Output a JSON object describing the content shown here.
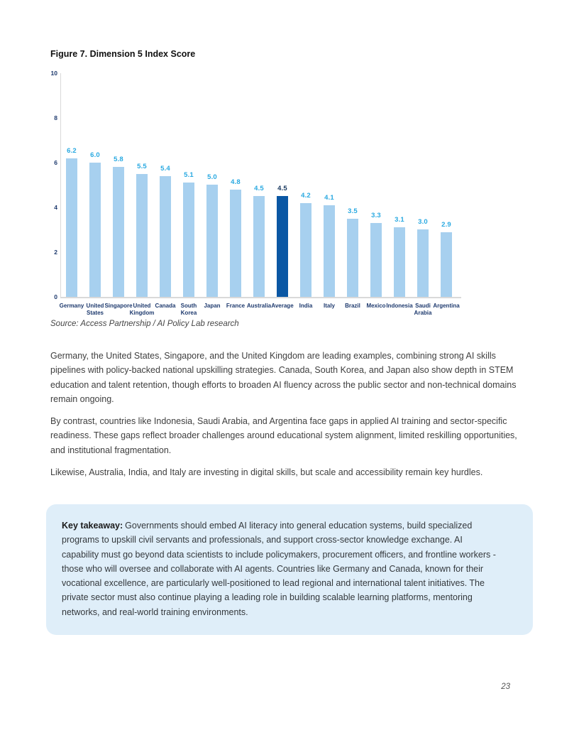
{
  "page": {
    "figure_title": "Figure 7. Dimension 5 Index Score",
    "source": "Source: Access Partnership / AI Policy Lab research",
    "paragraphs": [
      "Germany, the United States, Singapore, and the United Kingdom are leading examples, combining strong AI skills pipelines with policy-backed national upskilling strategies. Canada, South Korea, and Japan also show depth in STEM education and talent retention, though efforts to broaden AI fluency across the public sector and non-technical domains remain ongoing.",
      "By contrast, countries like Indonesia, Saudi Arabia, and Argentina face gaps in applied AI training and sector-specific readiness. These gaps reflect broader challenges around educational system alignment, limited reskilling opportunities, and institutional fragmentation.",
      "Likewise, Australia, India, and Italy are investing in digital skills, but scale and accessibility remain key hurdles."
    ],
    "takeaway": {
      "label": "Key takeaway:",
      "text": "Governments should embed AI literacy into general education systems, build specialized programs to upskill civil servants and professionals, and support cross-sector knowledge exchange. AI capability must go beyond data scientists to include policymakers, procurement officers, and frontline workers - those who will oversee and collaborate with AI agents. Countries like Germany and Canada, known for their vocational excellence, are particularly well-positioned to lead regional and international talent initiatives. The private sector must also continue playing a leading role in building scalable learning platforms, mentoring networks, and real-world training environments."
    },
    "page_number": "23"
  },
  "chart_data": {
    "type": "bar",
    "title": "Figure 7. Dimension 5 Index Score",
    "categories": [
      "Germany",
      "United States",
      "Singapore",
      "United Kingdom",
      "Canada",
      "South Korea",
      "Japan",
      "France",
      "Australia",
      "Average",
      "India",
      "Italy",
      "Brazil",
      "Mexico",
      "Indonesia",
      "Saudi Arabia",
      "Argentina"
    ],
    "values": [
      6.2,
      6.0,
      5.8,
      5.5,
      5.4,
      5.1,
      5.0,
      4.8,
      4.5,
      4.5,
      4.2,
      4.1,
      3.5,
      3.3,
      3.1,
      3.0,
      2.9
    ],
    "highlight_category": "Average",
    "xlabel": "",
    "ylabel": "",
    "ylim": [
      0,
      10
    ],
    "yticks": [
      0,
      2,
      4,
      6,
      8,
      10
    ],
    "grid": false,
    "legend": "none",
    "bar_color": "#A7D0EF",
    "highlight_color": "#0A57A4",
    "value_label_color": "#29A9E1",
    "highlight_value_label_color": "#17375E",
    "axis_label_color": "#1E3A6E",
    "axis_line_color": "#D9D9D9"
  }
}
